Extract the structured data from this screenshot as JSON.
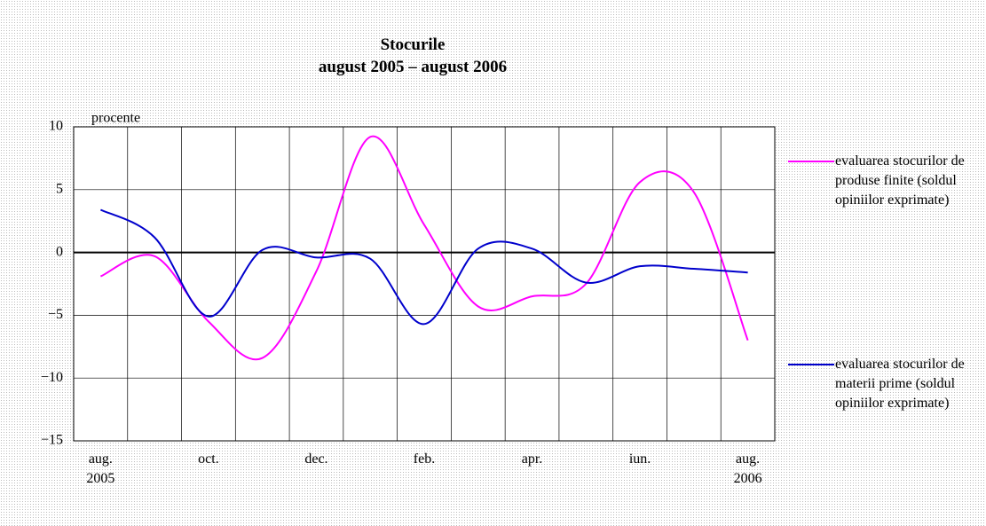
{
  "chart_data": {
    "type": "line",
    "title": "Stocurile",
    "subtitle": "august 2005 – august 2006",
    "y_label": "procente",
    "categories": [
      "aug.\n2005",
      null,
      "oct.",
      null,
      "dec.",
      null,
      "feb.",
      null,
      "apr.",
      null,
      "iun.",
      null,
      "aug.\n2006"
    ],
    "series": [
      {
        "name": "evaluarea stocurilor de produse finite (soldul opiniilor exprimate)",
        "color": "#ff00ff",
        "values": [
          -1.9,
          -0.3,
          -5.5,
          -8.4,
          -1.5,
          9.2,
          2.2,
          -4.3,
          -3.5,
          -2.5,
          5.6,
          4.8,
          -7.0
        ]
      },
      {
        "name": "evaluarea stocurilor de materii prime (soldul opiniilor exprimate)",
        "color": "#0000cc",
        "values": [
          3.4,
          1.2,
          -5.1,
          0.2,
          -0.4,
          -0.5,
          -5.7,
          0.3,
          0.3,
          -2.4,
          -1.1,
          -1.3,
          -1.6
        ]
      }
    ],
    "ylim": [
      -15,
      10
    ],
    "yticks": [
      {
        "value": -15,
        "label": "−15"
      },
      {
        "value": -10,
        "label": "−10"
      },
      {
        "value": -5,
        "label": "−5"
      },
      0,
      5,
      10
    ],
    "grid": true,
    "legend": "right"
  }
}
